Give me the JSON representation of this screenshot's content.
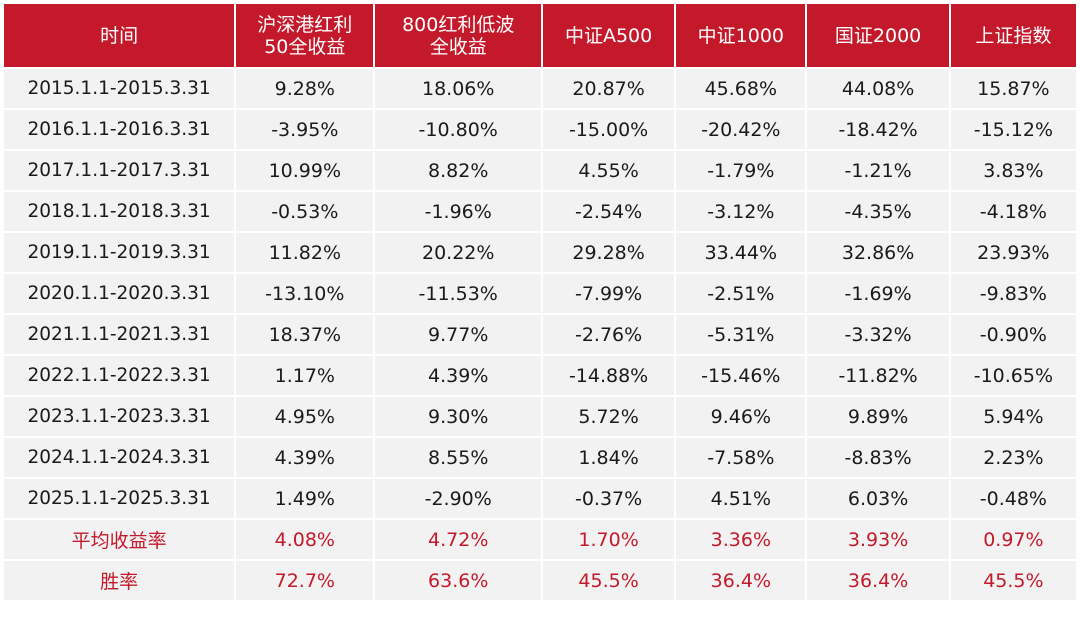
{
  "colors": {
    "header_bg": "#c4192b",
    "header_text": "#ffffff",
    "cell_bg": "#f2f2f2",
    "cell_text": "#1a1a1a",
    "summary_text": "#c4192b"
  },
  "chart_data": {
    "type": "table",
    "columns": [
      "时间",
      "沪深港红利50全收益",
      "800红利低波全收益",
      "中证A500",
      "中证1000",
      "国证2000",
      "上证指数"
    ],
    "header_lines": [
      [
        "时间"
      ],
      [
        "沪深港红利",
        "50全收益"
      ],
      [
        "800红利低波",
        "全收益"
      ],
      [
        "中证A500"
      ],
      [
        "中证1000"
      ],
      [
        "国证2000"
      ],
      [
        "上证指数"
      ]
    ],
    "rows": [
      [
        "2015.1.1-2015.3.31",
        "9.28%",
        "18.06%",
        "20.87%",
        "45.68%",
        "44.08%",
        "15.87%"
      ],
      [
        "2016.1.1-2016.3.31",
        "-3.95%",
        "-10.80%",
        "-15.00%",
        "-20.42%",
        "-18.42%",
        "-15.12%"
      ],
      [
        "2017.1.1-2017.3.31",
        "10.99%",
        "8.82%",
        "4.55%",
        "-1.79%",
        "-1.21%",
        "3.83%"
      ],
      [
        "2018.1.1-2018.3.31",
        "-0.53%",
        "-1.96%",
        "-2.54%",
        "-3.12%",
        "-4.35%",
        "-4.18%"
      ],
      [
        "2019.1.1-2019.3.31",
        "11.82%",
        "20.22%",
        "29.28%",
        "33.44%",
        "32.86%",
        "23.93%"
      ],
      [
        "2020.1.1-2020.3.31",
        "-13.10%",
        "-11.53%",
        "-7.99%",
        "-2.51%",
        "-1.69%",
        "-9.83%"
      ],
      [
        "2021.1.1-2021.3.31",
        "18.37%",
        "9.77%",
        "-2.76%",
        "-5.31%",
        "-3.32%",
        "-0.90%"
      ],
      [
        "2022.1.1-2022.3.31",
        "1.17%",
        "4.39%",
        "-14.88%",
        "-15.46%",
        "-11.82%",
        "-10.65%"
      ],
      [
        "2023.1.1-2023.3.31",
        "4.95%",
        "9.30%",
        "5.72%",
        "9.46%",
        "9.89%",
        "5.94%"
      ],
      [
        "2024.1.1-2024.3.31",
        "4.39%",
        "8.55%",
        "1.84%",
        "-7.58%",
        "-8.83%",
        "2.23%"
      ],
      [
        "2025.1.1-2025.3.31",
        "1.49%",
        "-2.90%",
        "-0.37%",
        "4.51%",
        "6.03%",
        "-0.48%"
      ]
    ],
    "summary_rows": [
      [
        "平均收益率",
        "4.08%",
        "4.72%",
        "1.70%",
        "3.36%",
        "3.93%",
        "0.97%"
      ],
      [
        "胜率",
        "72.7%",
        "63.6%",
        "45.5%",
        "36.4%",
        "36.4%",
        "45.5%"
      ]
    ]
  }
}
